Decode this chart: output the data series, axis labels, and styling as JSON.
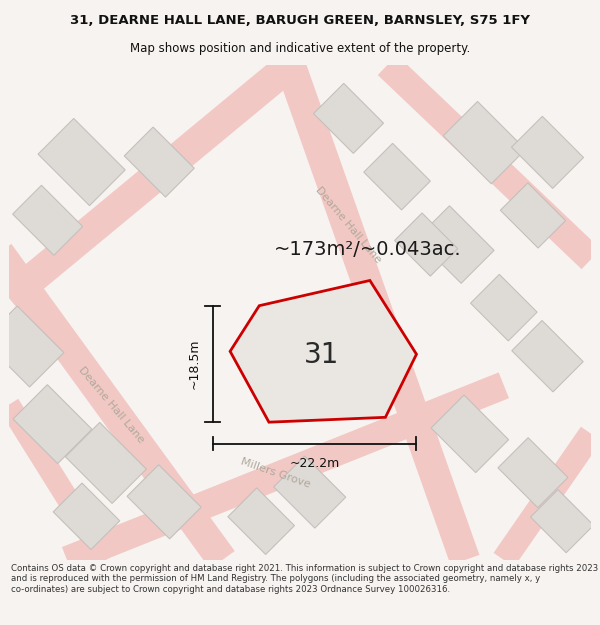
{
  "title_line1": "31, DEARNE HALL LANE, BARUGH GREEN, BARNSLEY, S75 1FY",
  "title_line2": "Map shows position and indicative extent of the property.",
  "area_text": "~173m²/~0.043ac.",
  "number_label": "31",
  "width_label": "~22.2m",
  "height_label": "~18.5m",
  "footer_text": "Contains OS data © Crown copyright and database right 2021. This information is subject to Crown copyright and database rights 2023 and is reproduced with the permission of HM Land Registry. The polygons (including the associated geometry, namely x, y co-ordinates) are subject to Crown copyright and database rights 2023 Ordnance Survey 100026316.",
  "bg_color": "#f7f3f0",
  "map_bg": "#eeebe6",
  "road_color": "#f2c8c4",
  "building_fill": "#dedad6",
  "building_edge": "#c5c0bc",
  "plot_edge": "#cc0000",
  "plot_fill": "#eae6e2",
  "dim_color": "#111111",
  "road_label_color": "#b0a89c",
  "title_color": "#111111",
  "footer_color": "#333333",
  "title_fontsize": 9.5,
  "subtitle_fontsize": 8.5,
  "footer_fontsize": 6.2,
  "area_fontsize": 14,
  "number_fontsize": 20,
  "dim_fontsize": 9,
  "road_label_fontsize": 8
}
